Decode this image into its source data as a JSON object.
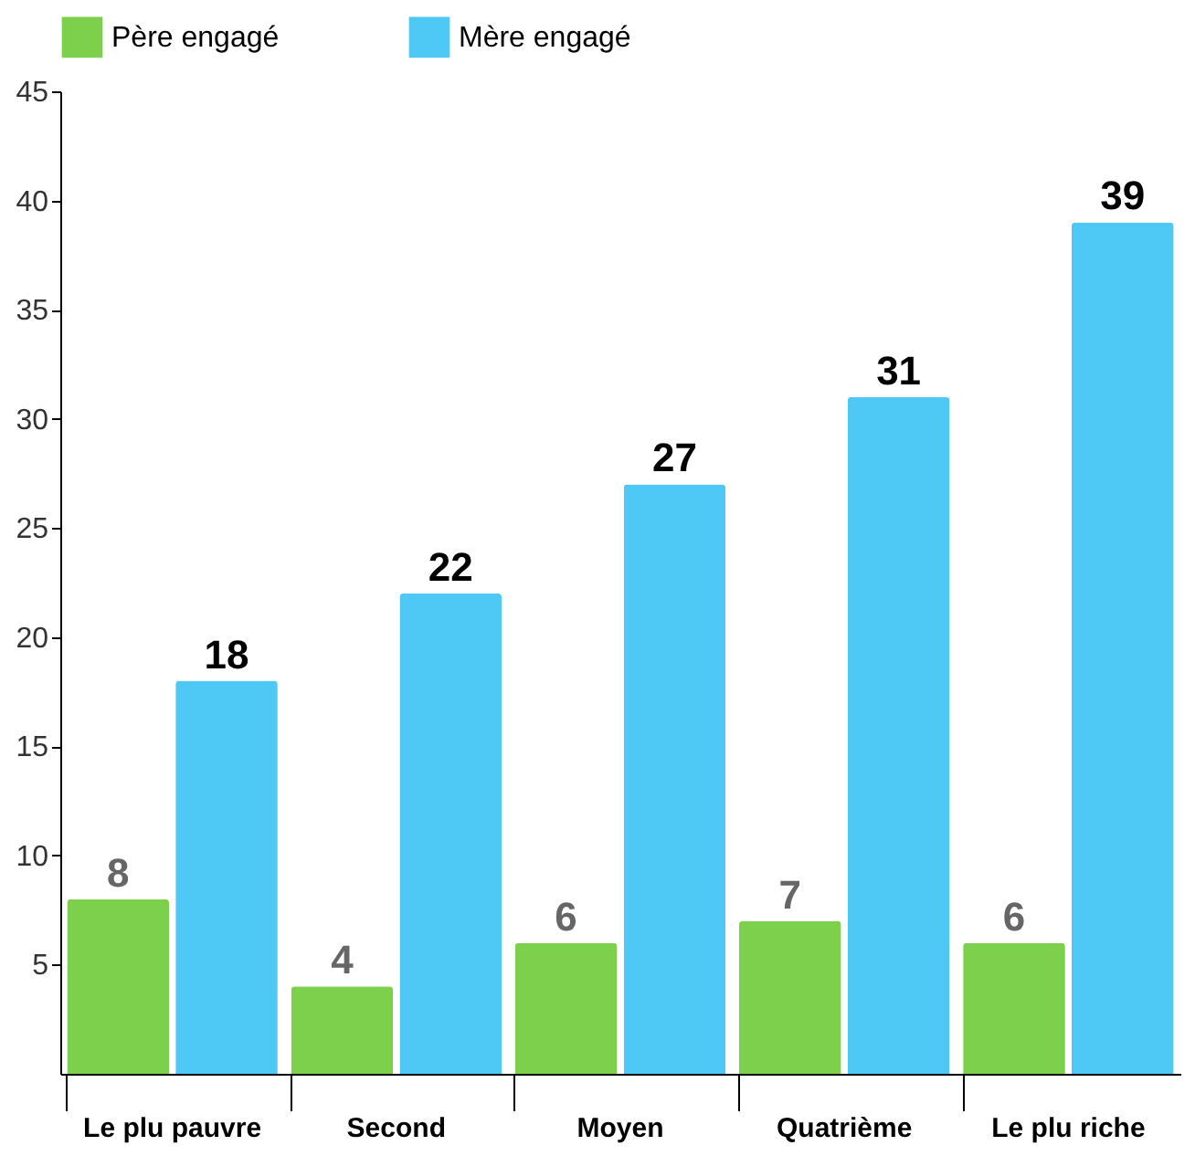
{
  "chart_data": {
    "type": "bar",
    "categories": [
      "Le plu pauvre",
      "Second",
      "Moyen",
      "Quatrième",
      "Le plu riche"
    ],
    "series": [
      {
        "name": "Père engagé",
        "color": "#7dd04b",
        "values": [
          8,
          4,
          6,
          7,
          6
        ]
      },
      {
        "name": "Mère engagé",
        "color": "#4ec8f4",
        "values": [
          18,
          22,
          27,
          31,
          39
        ]
      }
    ],
    "ylim": [
      0,
      45
    ],
    "yticks": [
      5,
      10,
      15,
      20,
      25,
      30,
      35,
      40,
      45
    ],
    "data_labels": true,
    "legend": "top",
    "grid": false
  }
}
